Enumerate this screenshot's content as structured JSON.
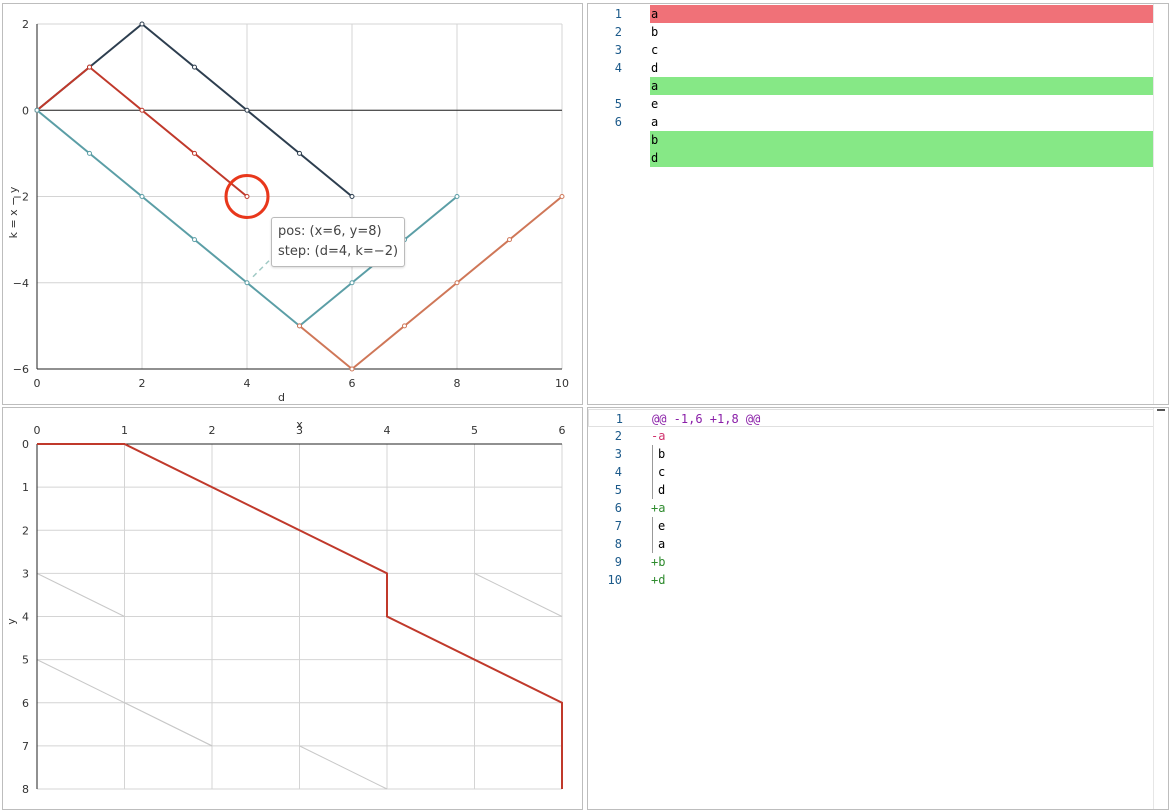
{
  "edit_graph": {
    "ylabel": "k = x − y",
    "xlabel": "d",
    "x_ticks": [
      "0",
      "2",
      "4",
      "6",
      "8",
      "10"
    ],
    "y_ticks": [
      "2",
      "0",
      "−2",
      "−4",
      "−6"
    ],
    "tooltip": {
      "line1": "pos: (x=6, y=8)",
      "line2": "step: (d=4, k=−2)"
    },
    "colors": {
      "dark": "#2d3e4f",
      "red": "#c0392b",
      "teal": "#5b9ea6",
      "orange": "#cf7758",
      "highlight": "#e8371b"
    }
  },
  "chart_data": [
    {
      "type": "line",
      "xlabel": "d",
      "ylabel": "k = x − y",
      "xlim": [
        0,
        10
      ],
      "ylim": [
        -6,
        2
      ],
      "series": [
        {
          "x": [
            0,
            1,
            2,
            3,
            4,
            5,
            6
          ],
          "y": [
            0,
            1,
            2,
            1,
            0,
            -1,
            -2
          ],
          "color": "#2d3e4f"
        },
        {
          "x": [
            0,
            1,
            2,
            3,
            4
          ],
          "y": [
            0,
            1,
            0,
            -1,
            -2
          ],
          "color": "#c0392b"
        },
        {
          "x": [
            0,
            1,
            2,
            3,
            4,
            5,
            6,
            7,
            8
          ],
          "y": [
            0,
            -1,
            -2,
            -3,
            -4,
            -5,
            -4,
            -3,
            -2
          ],
          "color": "#5b9ea6"
        },
        {
          "x": [
            5,
            6,
            7,
            8,
            9,
            10
          ],
          "y": [
            -5,
            -6,
            -5,
            -4,
            -3,
            -2
          ],
          "color": "#cf7758"
        }
      ],
      "highlight_point": {
        "x": 4,
        "y": -2
      }
    },
    {
      "type": "line",
      "xlabel": "x",
      "ylabel": "y",
      "xlim": [
        0,
        6
      ],
      "ylim": [
        0,
        8
      ],
      "series": [
        {
          "x": [
            0,
            1,
            3,
            4,
            4,
            6,
            6
          ],
          "y": [
            0,
            0,
            2,
            3,
            4,
            6,
            8
          ],
          "color": "#c0392b"
        }
      ]
    }
  ],
  "edit_path": {
    "xlabel": "x",
    "ylabel": "y",
    "x_ticks": [
      "0",
      "1",
      "2",
      "3",
      "4",
      "5",
      "6"
    ],
    "y_ticks": [
      "0",
      "1",
      "2",
      "3",
      "4",
      "5",
      "6",
      "7",
      "8"
    ]
  },
  "side_by_side": {
    "rows": [
      {
        "num": "1",
        "text": "a",
        "hl": "del"
      },
      {
        "num": "2",
        "text": "b",
        "hl": ""
      },
      {
        "num": "3",
        "text": "c",
        "hl": ""
      },
      {
        "num": "4",
        "text": "d",
        "hl": ""
      },
      {
        "num": "",
        "text": "a",
        "hl": "add"
      },
      {
        "num": "5",
        "text": "e",
        "hl": ""
      },
      {
        "num": "6",
        "text": "a",
        "hl": ""
      },
      {
        "num": "",
        "text": "b",
        "hl": "add"
      },
      {
        "num": "",
        "text": "d",
        "hl": "add"
      }
    ]
  },
  "unified_diff": {
    "rows": [
      {
        "num": "1",
        "text": "@@ -1,6 +1,8 @@",
        "kind": "hunk"
      },
      {
        "num": "2",
        "text": "-a",
        "kind": "del"
      },
      {
        "num": "3",
        "text": "b",
        "kind": "ctx"
      },
      {
        "num": "4",
        "text": "c",
        "kind": "ctx"
      },
      {
        "num": "5",
        "text": "d",
        "kind": "ctx"
      },
      {
        "num": "6",
        "text": "+a",
        "kind": "add"
      },
      {
        "num": "7",
        "text": "e",
        "kind": "ctx"
      },
      {
        "num": "8",
        "text": "a",
        "kind": "ctx"
      },
      {
        "num": "9",
        "text": "+b",
        "kind": "add"
      },
      {
        "num": "10",
        "text": "+d",
        "kind": "add"
      }
    ]
  }
}
